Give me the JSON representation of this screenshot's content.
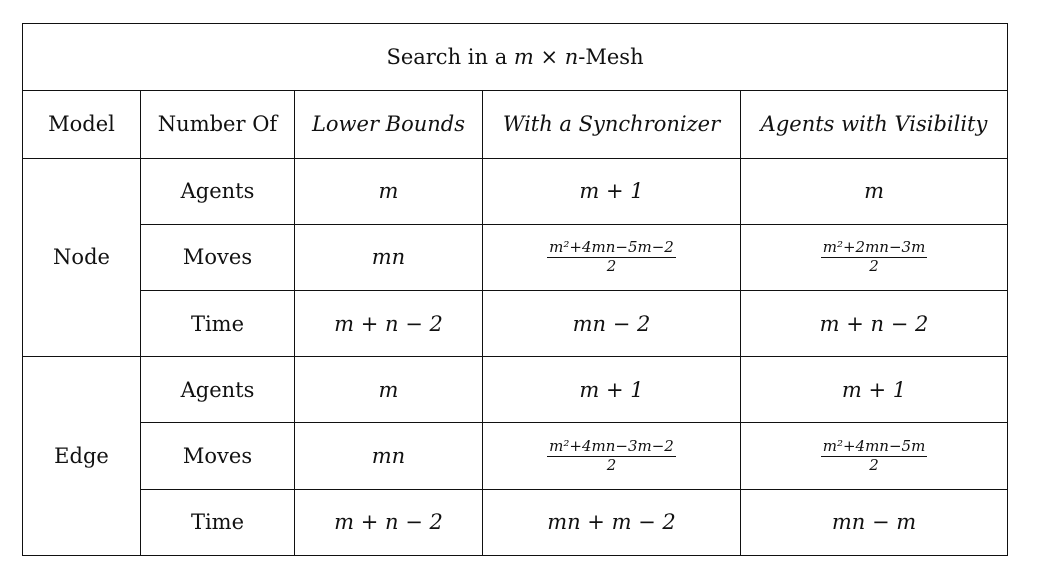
{
  "title": {
    "prefix": "Search in a ",
    "math": "m × n",
    "suffix": "-Mesh"
  },
  "headers": [
    "Model",
    "Number Of",
    "Lower Bounds",
    "With a Synchronizer",
    "Agents with Visibility"
  ],
  "groups": [
    {
      "model": "Node",
      "rows": [
        {
          "metric": "Agents",
          "lower": "m",
          "sync": "m + 1",
          "visibility": "m"
        },
        {
          "metric": "Moves",
          "lower": "mn",
          "sync": {
            "num": "m²+4mn−5m−2",
            "den": "2"
          },
          "visibility": {
            "num": "m²+2mn−3m",
            "den": "2"
          }
        },
        {
          "metric": "Time",
          "lower": "m + n − 2",
          "sync": "mn − 2",
          "visibility": "m + n − 2"
        }
      ]
    },
    {
      "model": "Edge",
      "rows": [
        {
          "metric": "Agents",
          "lower": "m",
          "sync": "m + 1",
          "visibility": "m + 1"
        },
        {
          "metric": "Moves",
          "lower": "mn",
          "sync": {
            "num": "m²+4mn−3m−2",
            "den": "2"
          },
          "visibility": {
            "num": "m²+4mn−5m",
            "den": "2"
          }
        },
        {
          "metric": "Time",
          "lower": "m + n − 2",
          "sync": "mn + m − 2",
          "visibility": "mn − m"
        }
      ]
    }
  ]
}
